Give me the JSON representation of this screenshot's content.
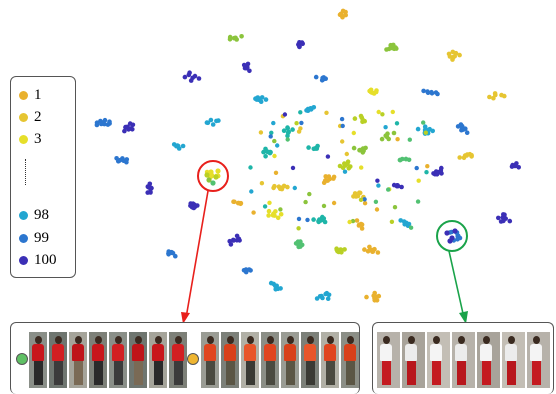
{
  "legend": {
    "items": [
      {
        "label": "1",
        "color": "#e9b12e"
      },
      {
        "label": "2",
        "color": "#e6c532"
      },
      {
        "label": "3",
        "color": "#e6df2a"
      },
      {
        "label": "98",
        "color": "#23a6d1"
      },
      {
        "label": "99",
        "color": "#2c76cf"
      },
      {
        "label": "100",
        "color": "#3b2fb6"
      }
    ]
  },
  "colors": {
    "palette": [
      "#3b2fb6",
      "#2c76cf",
      "#23a6d1",
      "#1eb5a8",
      "#52c172",
      "#8bc43c",
      "#b9d025",
      "#e6df2a",
      "#e6c532",
      "#e9b12e"
    ],
    "highlight_red": "#e8201c",
    "highlight_green": "#1aa34a",
    "marker_green": "#5fc064",
    "marker_yellow": "#eeb531"
  },
  "panels": [
    {
      "name": "left-panel",
      "markers": [
        "marker_green",
        "marker_yellow"
      ]
    },
    {
      "name": "right-panel",
      "markers": []
    }
  ]
}
